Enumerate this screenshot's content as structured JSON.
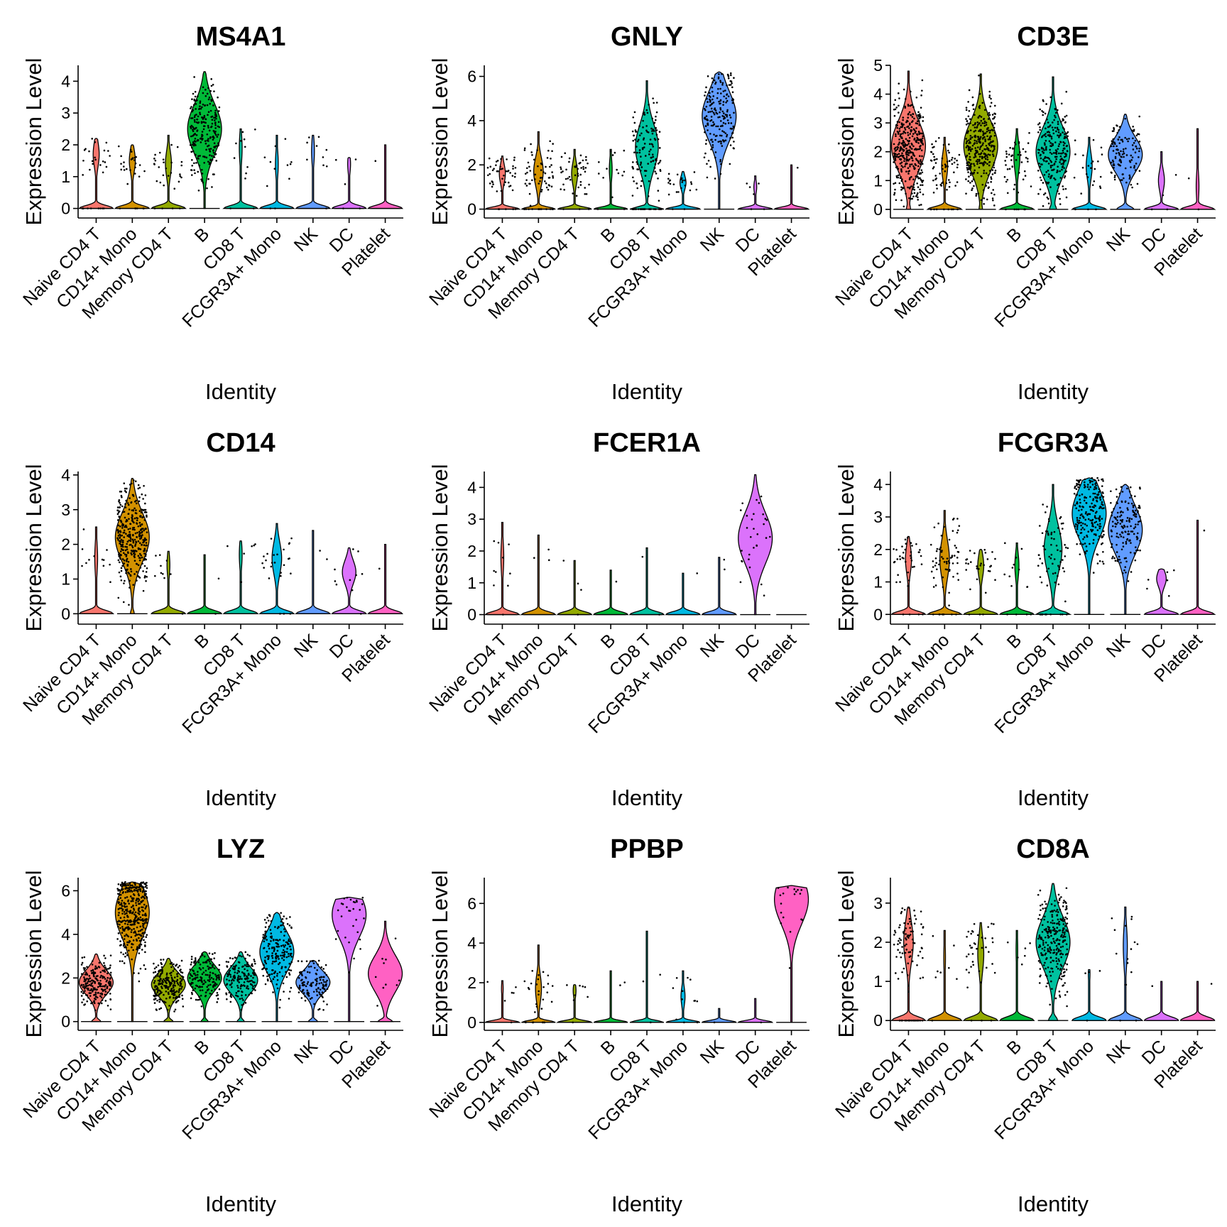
{
  "chart_data": {
    "type": "violin",
    "shared": {
      "categories": [
        "Naive CD4 T",
        "CD14+ Mono",
        "Memory CD4 T",
        "B",
        "CD8 T",
        "FCGR3A+ Mono",
        "NK",
        "DC",
        "Platelet"
      ],
      "colors": [
        "#F8766D",
        "#D39200",
        "#93AA00",
        "#00BA38",
        "#00C19F",
        "#00B9E3",
        "#619CFF",
        "#DB72FB",
        "#FF61C3"
      ],
      "xlabel": "Identity",
      "ylabel": "Expression Level"
    },
    "panels": [
      {
        "title": "MS4A1",
        "yticks": [
          0,
          1,
          2,
          3,
          4
        ],
        "ylim": [
          -0.3,
          4.5
        ],
        "groups": [
          {
            "max": 2.2,
            "mode": 1.7,
            "zero": 0.9,
            "n": 30
          },
          {
            "max": 2.0,
            "mode": 1.5,
            "zero": 0.9,
            "n": 30
          },
          {
            "max": 2.3,
            "mode": 1.4,
            "zero": 0.9,
            "n": 30
          },
          {
            "max": 4.3,
            "mode": 2.5,
            "zero": 0.05,
            "n": 240
          },
          {
            "max": 2.5,
            "mode": 1.9,
            "zero": 0.95,
            "n": 12
          },
          {
            "max": 2.3,
            "mode": 1.4,
            "zero": 0.95,
            "n": 12
          },
          {
            "max": 2.3,
            "mode": 1.8,
            "zero": 0.95,
            "n": 10
          },
          {
            "max": 1.6,
            "mode": 1.4,
            "zero": 0.95,
            "n": 5
          },
          {
            "max": 2.0,
            "mode": 2.0,
            "zero": 0.98,
            "n": 1
          }
        ]
      },
      {
        "title": "GNLY",
        "yticks": [
          0,
          2,
          4,
          6
        ],
        "ylim": [
          -0.4,
          6.5
        ],
        "groups": [
          {
            "max": 2.4,
            "mode": 1.6,
            "zero": 0.9,
            "n": 50
          },
          {
            "max": 3.5,
            "mode": 1.7,
            "zero": 0.85,
            "n": 70
          },
          {
            "max": 2.7,
            "mode": 1.6,
            "zero": 0.9,
            "n": 50
          },
          {
            "max": 2.7,
            "mode": 1.8,
            "zero": 0.95,
            "n": 15
          },
          {
            "max": 5.8,
            "mode": 2.8,
            "zero": 0.7,
            "n": 150
          },
          {
            "max": 1.7,
            "mode": 1.2,
            "zero": 0.9,
            "n": 25
          },
          {
            "max": 6.2,
            "mode": 4.2,
            "zero": 0.05,
            "n": 200
          },
          {
            "max": 1.5,
            "mode": 1.0,
            "zero": 0.95,
            "n": 6
          },
          {
            "max": 2.0,
            "mode": 2.0,
            "zero": 0.98,
            "n": 1
          }
        ]
      },
      {
        "title": "CD3E",
        "yticks": [
          0,
          1,
          2,
          3,
          4,
          5
        ],
        "ylim": [
          -0.3,
          5.0
        ],
        "groups": [
          {
            "max": 4.8,
            "mode": 2.2,
            "zero": 0.12,
            "n": 380
          },
          {
            "max": 2.5,
            "mode": 1.5,
            "zero": 0.9,
            "n": 70
          },
          {
            "max": 4.7,
            "mode": 2.2,
            "zero": 0.1,
            "n": 320
          },
          {
            "max": 2.8,
            "mode": 1.8,
            "zero": 0.9,
            "n": 50
          },
          {
            "max": 4.6,
            "mode": 2.0,
            "zero": 0.2,
            "n": 240
          },
          {
            "max": 2.5,
            "mode": 1.5,
            "zero": 0.9,
            "n": 25
          },
          {
            "max": 3.3,
            "mode": 1.9,
            "zero": 0.45,
            "n": 120
          },
          {
            "max": 2.0,
            "mode": 1.0,
            "zero": 0.9,
            "n": 4
          },
          {
            "max": 2.8,
            "mode": 0.8,
            "zero": 0.95,
            "n": 2
          }
        ]
      },
      {
        "title": "CD14",
        "yticks": [
          0,
          1,
          2,
          3,
          4
        ],
        "ylim": [
          -0.3,
          4.1
        ],
        "groups": [
          {
            "max": 2.5,
            "mode": 1.6,
            "zero": 0.95,
            "n": 12
          },
          {
            "max": 3.9,
            "mode": 2.2,
            "zero": 0.15,
            "n": 360
          },
          {
            "max": 1.8,
            "mode": 1.4,
            "zero": 0.95,
            "n": 10
          },
          {
            "max": 1.7,
            "mode": 1.4,
            "zero": 0.98,
            "n": 2
          },
          {
            "max": 2.1,
            "mode": 1.7,
            "zero": 0.95,
            "n": 6
          },
          {
            "max": 2.6,
            "mode": 1.6,
            "zero": 0.85,
            "n": 25
          },
          {
            "max": 2.4,
            "mode": 2.0,
            "zero": 0.98,
            "n": 2
          },
          {
            "max": 1.9,
            "mode": 1.2,
            "zero": 0.8,
            "n": 10
          },
          {
            "max": 2.0,
            "mode": 2.0,
            "zero": 0.98,
            "n": 1
          }
        ]
      },
      {
        "title": "FCER1A",
        "yticks": [
          0,
          1,
          2,
          3,
          4
        ],
        "ylim": [
          -0.3,
          4.5
        ],
        "groups": [
          {
            "max": 2.9,
            "mode": 1.8,
            "zero": 0.95,
            "n": 10
          },
          {
            "max": 2.5,
            "mode": 2.0,
            "zero": 0.98,
            "n": 3
          },
          {
            "max": 1.7,
            "mode": 1.5,
            "zero": 0.98,
            "n": 4
          },
          {
            "max": 1.4,
            "mode": 1.4,
            "zero": 0.99,
            "n": 1
          },
          {
            "max": 2.1,
            "mode": 1.9,
            "zero": 0.99,
            "n": 2
          },
          {
            "max": 1.3,
            "mode": 1.3,
            "zero": 0.99,
            "n": 1
          },
          {
            "max": 1.8,
            "mode": 1.8,
            "zero": 0.99,
            "n": 2
          },
          {
            "max": 4.4,
            "mode": 2.4,
            "zero": 0.05,
            "n": 30
          },
          {
            "max": 0.0,
            "mode": 0.0,
            "zero": 1.0,
            "n": 0
          }
        ]
      },
      {
        "title": "FCGR3A",
        "yticks": [
          0,
          1,
          2,
          3,
          4
        ],
        "ylim": [
          -0.3,
          4.4
        ],
        "groups": [
          {
            "max": 2.4,
            "mode": 1.7,
            "zero": 0.9,
            "n": 40
          },
          {
            "max": 3.2,
            "mode": 1.7,
            "zero": 0.85,
            "n": 70
          },
          {
            "max": 2.0,
            "mode": 1.5,
            "zero": 0.9,
            "n": 30
          },
          {
            "max": 2.2,
            "mode": 1.5,
            "zero": 0.93,
            "n": 15
          },
          {
            "max": 4.0,
            "mode": 2.0,
            "zero": 0.75,
            "n": 80
          },
          {
            "max": 4.2,
            "mode": 3.1,
            "zero": 0.05,
            "n": 220
          },
          {
            "max": 4.0,
            "mode": 2.6,
            "zero": 0.05,
            "n": 160
          },
          {
            "max": 1.4,
            "mode": 1.1,
            "zero": 0.85,
            "n": 6
          },
          {
            "max": 2.9,
            "mode": 2.9,
            "zero": 0.98,
            "n": 1
          }
        ]
      },
      {
        "title": "LYZ",
        "yticks": [
          0,
          2,
          4,
          6
        ],
        "ylim": [
          -0.4,
          6.6
        ],
        "groups": [
          {
            "max": 3.1,
            "mode": 1.8,
            "zero": 0.3,
            "n": 220
          },
          {
            "max": 6.4,
            "mode": 5.0,
            "zero": 0.02,
            "n": 380
          },
          {
            "max": 2.9,
            "mode": 1.7,
            "zero": 0.3,
            "n": 220
          },
          {
            "max": 3.2,
            "mode": 2.0,
            "zero": 0.25,
            "n": 160
          },
          {
            "max": 3.2,
            "mode": 1.9,
            "zero": 0.25,
            "n": 160
          },
          {
            "max": 5.0,
            "mode": 3.2,
            "zero": 0.05,
            "n": 200
          },
          {
            "max": 2.8,
            "mode": 1.8,
            "zero": 0.3,
            "n": 120
          },
          {
            "max": 5.7,
            "mode": 4.9,
            "zero": 0.05,
            "n": 30
          },
          {
            "max": 4.6,
            "mode": 2.2,
            "zero": 0.4,
            "n": 10
          }
        ]
      },
      {
        "title": "PPBP",
        "yticks": [
          0,
          2,
          4,
          6
        ],
        "ylim": [
          -0.4,
          7.3
        ],
        "groups": [
          {
            "max": 2.1,
            "mode": 1.7,
            "zero": 0.97,
            "n": 6
          },
          {
            "max": 3.9,
            "mode": 1.7,
            "zero": 0.9,
            "n": 30
          },
          {
            "max": 1.9,
            "mode": 1.6,
            "zero": 0.95,
            "n": 8
          },
          {
            "max": 2.6,
            "mode": 2.0,
            "zero": 0.98,
            "n": 2
          },
          {
            "max": 4.6,
            "mode": 2.2,
            "zero": 0.98,
            "n": 3
          },
          {
            "max": 2.6,
            "mode": 1.3,
            "zero": 0.93,
            "n": 12
          },
          {
            "max": 0.7,
            "mode": 0.7,
            "zero": 0.99,
            "n": 1
          },
          {
            "max": 1.2,
            "mode": 1.2,
            "zero": 0.99,
            "n": 1
          },
          {
            "max": 6.9,
            "mode": 6.2,
            "zero": 0.0,
            "n": 18
          }
        ]
      },
      {
        "title": "CD8A",
        "yticks": [
          0,
          1,
          2,
          3
        ],
        "ylim": [
          -0.25,
          3.65
        ],
        "groups": [
          {
            "max": 2.9,
            "mode": 2.0,
            "zero": 0.85,
            "n": 100
          },
          {
            "max": 2.3,
            "mode": 1.6,
            "zero": 0.97,
            "n": 8
          },
          {
            "max": 2.5,
            "mode": 1.7,
            "zero": 0.9,
            "n": 40
          },
          {
            "max": 2.3,
            "mode": 1.8,
            "zero": 0.97,
            "n": 6
          },
          {
            "max": 3.5,
            "mode": 2.0,
            "zero": 0.3,
            "n": 260
          },
          {
            "max": 1.3,
            "mode": 1.2,
            "zero": 0.97,
            "n": 4
          },
          {
            "max": 2.9,
            "mode": 1.9,
            "zero": 0.93,
            "n": 15
          },
          {
            "max": 1.0,
            "mode": 1.0,
            "zero": 0.99,
            "n": 1
          },
          {
            "max": 1.0,
            "mode": 1.0,
            "zero": 0.99,
            "n": 1
          }
        ]
      }
    ]
  }
}
